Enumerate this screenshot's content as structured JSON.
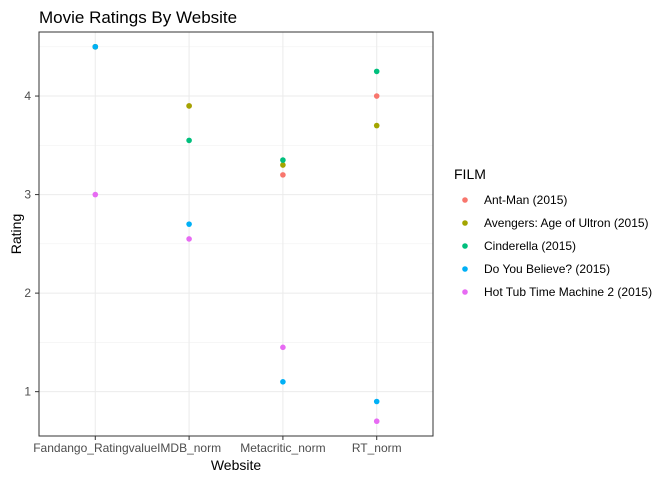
{
  "chart_data": {
    "type": "scatter",
    "title": "Movie Ratings By Website",
    "xlabel": "Website",
    "ylabel": "Rating",
    "categories": [
      "Fandango_Ratingvalue",
      "IMDB_norm",
      "Metacritic_norm",
      "RT_norm"
    ],
    "yticks": [
      1,
      2,
      3,
      4
    ],
    "ylim": [
      0.55,
      4.65
    ],
    "grid": true,
    "legend": {
      "title": "FILM",
      "position": "right"
    },
    "series": [
      {
        "name": "Ant-Man (2015)",
        "color": "#F8766D",
        "values": [
          4.5,
          3.9,
          3.2,
          4.0
        ]
      },
      {
        "name": "Avengers: Age of Ultron (2015)",
        "color": "#A3A500",
        "values": [
          4.5,
          3.9,
          3.3,
          3.7
        ]
      },
      {
        "name": "Cinderella (2015)",
        "color": "#00BF7D",
        "values": [
          4.5,
          3.55,
          3.35,
          4.25
        ]
      },
      {
        "name": "Do You Believe? (2015)",
        "color": "#00B0F6",
        "values": [
          4.5,
          2.7,
          1.1,
          0.9
        ]
      },
      {
        "name": "Hot Tub Time Machine 2 (2015)",
        "color": "#E76BF3",
        "values": [
          3.0,
          2.55,
          1.45,
          0.7
        ]
      }
    ]
  }
}
